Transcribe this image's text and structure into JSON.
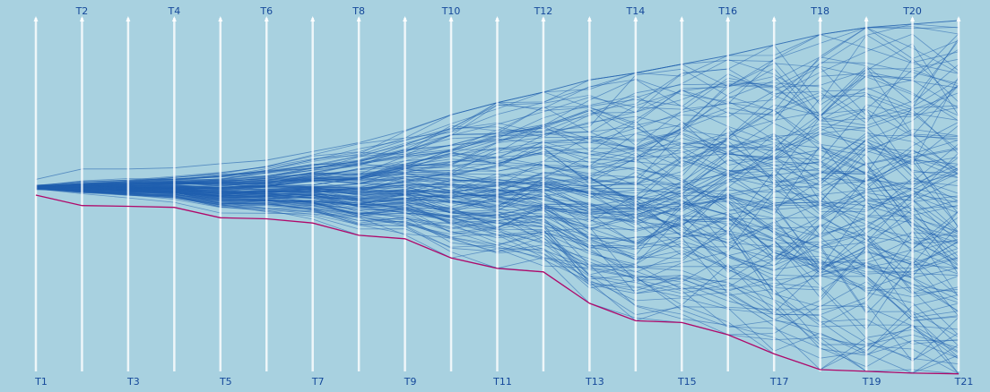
{
  "chart_data": {
    "type": "line",
    "title": "",
    "xlabel": "",
    "ylabel": "",
    "categories": [
      "T1",
      "T2",
      "T3",
      "T4",
      "T5",
      "T6",
      "T7",
      "T8",
      "T9",
      "T10",
      "T11",
      "T12",
      "T13",
      "T14",
      "T15",
      "T16",
      "T17",
      "T18",
      "T19",
      "T20",
      "T21"
    ],
    "label_top": [
      "T2",
      "T4",
      "T6",
      "T8",
      "T10",
      "T12",
      "T14",
      "T16",
      "T18",
      "T20"
    ],
    "label_bottom": [
      "T1",
      "T3",
      "T5",
      "T7",
      "T9",
      "T11",
      "T13",
      "T15",
      "T17",
      "T19",
      "T21"
    ],
    "ylim": [
      -5,
      5.5
    ],
    "grid": false,
    "legend": "none",
    "colors": {
      "background": "#a8d1e0",
      "paths": "#1f5fae",
      "highlight": "#b0086a",
      "axis": "#ffffff",
      "labels": "#15489a"
    },
    "series_count": 150,
    "envelope": {
      "upper": [
        0.45,
        0.75,
        0.75,
        0.78,
        0.9,
        1.0,
        1.25,
        1.5,
        1.85,
        2.3,
        2.65,
        2.95,
        3.3,
        3.5,
        3.75,
        4.0,
        4.3,
        4.6,
        4.8,
        4.9,
        5.0
      ],
      "lower": [
        0.0,
        -0.3,
        -0.32,
        -0.35,
        -0.65,
        -0.68,
        -0.8,
        -1.15,
        -1.25,
        -1.8,
        -2.1,
        -2.2,
        -3.1,
        -3.6,
        -3.65,
        -4.0,
        -4.55,
        -5.0,
        -5.05,
        -5.1,
        -5.12
      ]
    },
    "highlight_series": {
      "values": [
        0.0,
        -0.3,
        -0.32,
        -0.35,
        -0.65,
        -0.68,
        -0.8,
        -1.15,
        -1.25,
        -1.8,
        -2.1,
        -2.2,
        -3.1,
        -3.6,
        -3.65,
        -4.0,
        -4.55,
        -5.0,
        -5.05,
        -5.1,
        -5.12
      ]
    }
  }
}
